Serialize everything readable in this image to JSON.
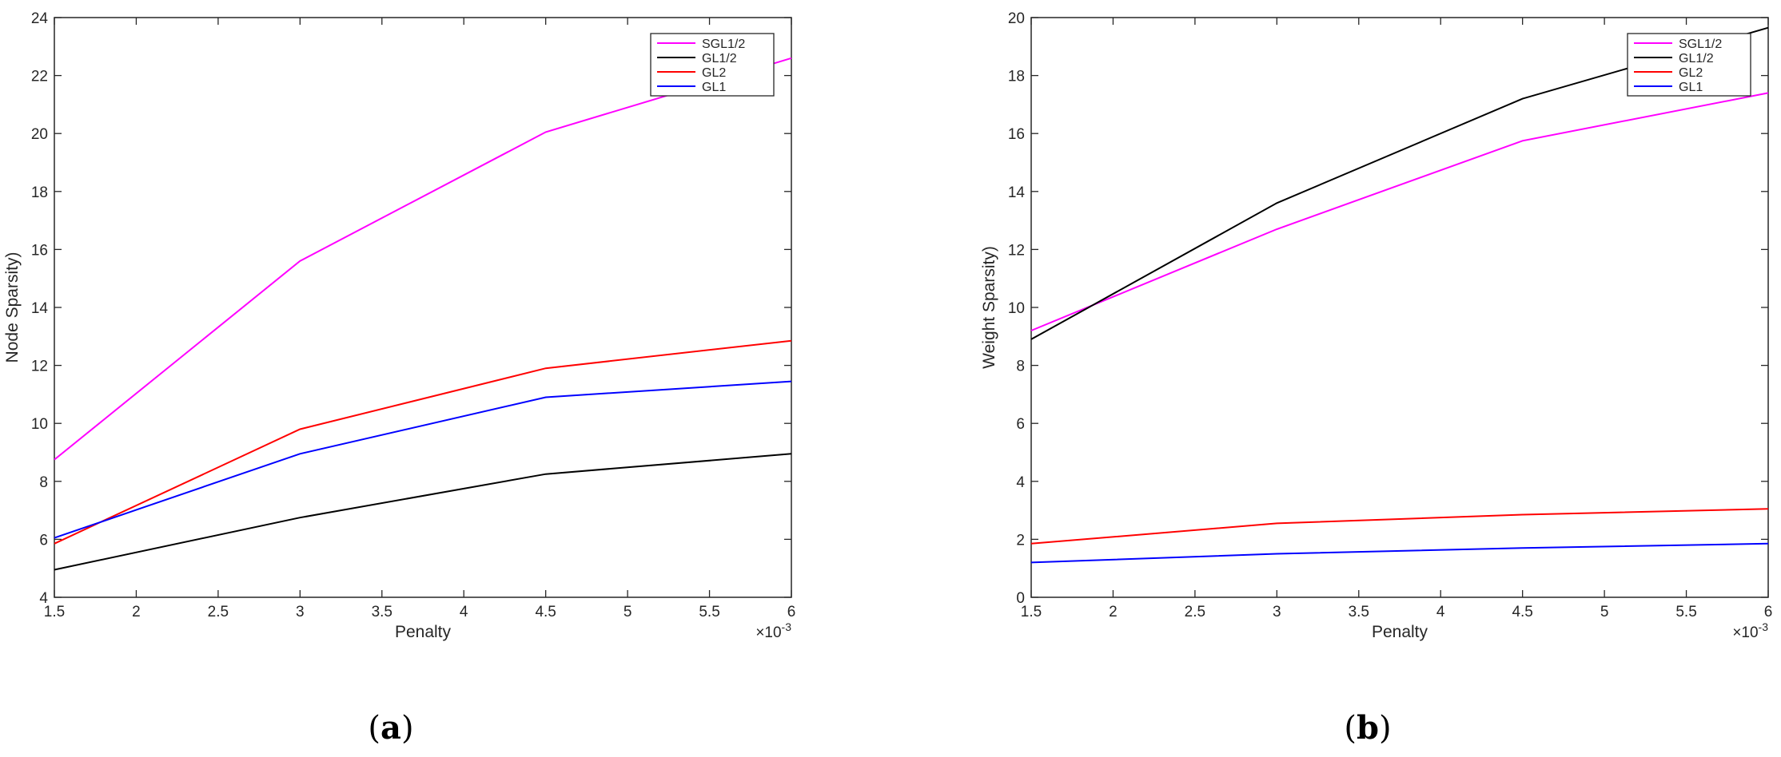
{
  "chart_data": [
    {
      "type": "line",
      "panel_label": "a",
      "xlabel": "Penalty",
      "ylabel": "Node Sparsity)",
      "x_exponent_base": "×10",
      "x_exponent_power": "-3",
      "xlim": [
        1.5,
        6
      ],
      "ylim": [
        4,
        24
      ],
      "xticks": [
        1.5,
        2,
        2.5,
        3,
        3.5,
        4,
        4.5,
        5,
        5.5,
        6
      ],
      "yticks": [
        4,
        6,
        8,
        10,
        12,
        14,
        16,
        18,
        20,
        22,
        24
      ],
      "x": [
        1.5,
        3,
        4.5,
        6
      ],
      "legend_position": "top-right",
      "grid": false,
      "series": [
        {
          "name": "SGL1/2",
          "color": "#ff00ff",
          "values": [
            8.75,
            15.6,
            20.05,
            22.6
          ]
        },
        {
          "name": "GL1/2",
          "color": "#000000",
          "values": [
            4.95,
            6.75,
            8.25,
            8.95
          ]
        },
        {
          "name": "GL2",
          "color": "#ff0000",
          "values": [
            5.85,
            9.8,
            11.9,
            12.85
          ]
        },
        {
          "name": "GL1",
          "color": "#0000ff",
          "values": [
            6.05,
            8.95,
            10.9,
            11.45
          ]
        }
      ]
    },
    {
      "type": "line",
      "panel_label": "b",
      "xlabel": "Penalty",
      "ylabel": "Weight Sparsity)",
      "x_exponent_base": "×10",
      "x_exponent_power": "-3",
      "xlim": [
        1.5,
        6
      ],
      "ylim": [
        0,
        20
      ],
      "xticks": [
        1.5,
        2,
        2.5,
        3,
        3.5,
        4,
        4.5,
        5,
        5.5,
        6
      ],
      "yticks": [
        0,
        2,
        4,
        6,
        8,
        10,
        12,
        14,
        16,
        18,
        20
      ],
      "x": [
        1.5,
        3,
        4.5,
        6
      ],
      "legend_position": "top-right",
      "grid": false,
      "series": [
        {
          "name": "SGL1/2",
          "color": "#ff00ff",
          "values": [
            9.2,
            12.7,
            15.75,
            17.4
          ]
        },
        {
          "name": "GL1/2",
          "color": "#000000",
          "values": [
            8.9,
            13.6,
            17.2,
            19.65
          ]
        },
        {
          "name": "GL2",
          "color": "#ff0000",
          "values": [
            1.85,
            2.55,
            2.85,
            3.05
          ]
        },
        {
          "name": "GL1",
          "color": "#0000ff",
          "values": [
            1.2,
            1.5,
            1.7,
            1.85
          ]
        }
      ]
    }
  ]
}
